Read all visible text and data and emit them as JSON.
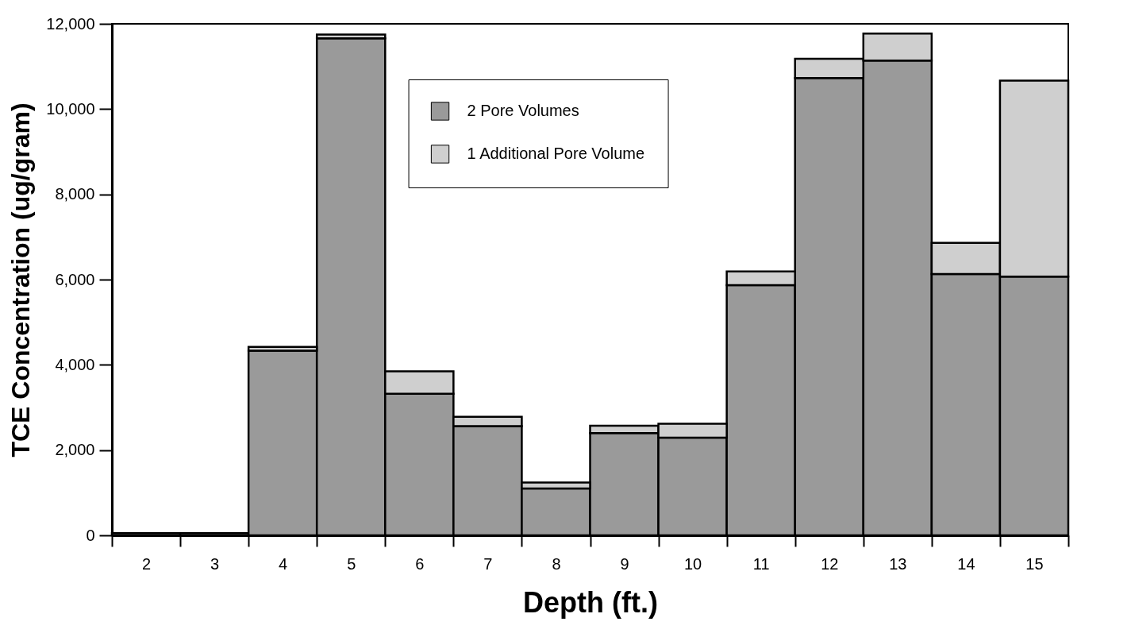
{
  "chart_data": {
    "type": "bar",
    "stacked": true,
    "xlabel": "Depth (ft.)",
    "ylabel": "TCE Concentration (ug/gram)",
    "categories": [
      "2",
      "3",
      "4",
      "5",
      "6",
      "7",
      "8",
      "9",
      "10",
      "11",
      "12",
      "13",
      "14",
      "15"
    ],
    "series": [
      {
        "name": "2 Pore Volumes",
        "color": "#9a9a9a",
        "values": [
          50,
          50,
          4330,
          11660,
          3320,
          2560,
          1100,
          2400,
          2290,
          5870,
          10730,
          11140,
          6130,
          6070
        ]
      },
      {
        "name": "1 Additional Pore Volume",
        "color": "#cfcfcf",
        "values": [
          null,
          null,
          90,
          90,
          530,
          220,
          140,
          170,
          330,
          320,
          450,
          630,
          730,
          4600
        ]
      }
    ],
    "ylim": [
      0,
      12000
    ],
    "yticks": [
      {
        "value": 0,
        "label": "0"
      },
      {
        "value": 2000,
        "label": "2,000"
      },
      {
        "value": 4000,
        "label": "4,000"
      },
      {
        "value": 6000,
        "label": "6,000"
      },
      {
        "value": 8000,
        "label": "8,000"
      },
      {
        "value": 10000,
        "label": "10,000"
      },
      {
        "value": 12000,
        "label": "12,000"
      }
    ],
    "legend": "top"
  }
}
